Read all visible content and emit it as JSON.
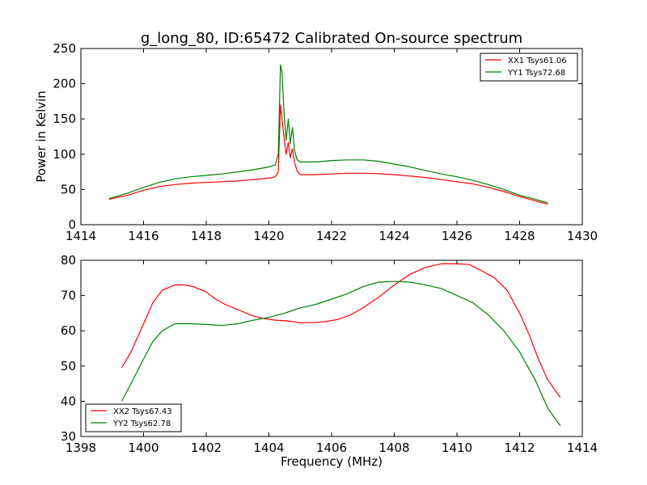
{
  "chart_data": [
    {
      "type": "line",
      "title": "g_long_80, ID:65472 Calibrated On-source spectrum",
      "xlabel": "",
      "ylabel": "Power in Kelvin",
      "xlim": [
        1414,
        1430
      ],
      "ylim": [
        0,
        250
      ],
      "xticks": [
        1414,
        1416,
        1418,
        1420,
        1422,
        1424,
        1426,
        1428,
        1430
      ],
      "yticks": [
        0,
        50,
        100,
        150,
        200,
        250
      ],
      "legend_position": "upper right",
      "grid": false,
      "series": [
        {
          "name": "XX1 Tsys61.06",
          "color": "#ff0000",
          "points": [
            [
              1414.9,
              36
            ],
            [
              1415.5,
              42
            ],
            [
              1416.0,
              49
            ],
            [
              1416.5,
              54
            ],
            [
              1417.0,
              57
            ],
            [
              1417.5,
              59
            ],
            [
              1418.0,
              60
            ],
            [
              1418.5,
              61
            ],
            [
              1419.0,
              62
            ],
            [
              1419.5,
              64
            ],
            [
              1420.0,
              66
            ],
            [
              1420.2,
              68
            ],
            [
              1420.3,
              75
            ],
            [
              1420.37,
              170
            ],
            [
              1420.42,
              150
            ],
            [
              1420.48,
              125
            ],
            [
              1420.55,
              100
            ],
            [
              1420.62,
              117
            ],
            [
              1420.68,
              95
            ],
            [
              1420.75,
              108
            ],
            [
              1420.82,
              88
            ],
            [
              1420.9,
              76
            ],
            [
              1421.0,
              71
            ],
            [
              1421.5,
              71
            ],
            [
              1422.0,
              72
            ],
            [
              1422.5,
              73
            ],
            [
              1423.0,
              73
            ],
            [
              1423.5,
              72.5
            ],
            [
              1424.0,
              71
            ],
            [
              1424.5,
              69
            ],
            [
              1425.0,
              67
            ],
            [
              1425.5,
              64
            ],
            [
              1426.0,
              61
            ],
            [
              1426.5,
              58
            ],
            [
              1427.0,
              53
            ],
            [
              1427.5,
              47
            ],
            [
              1428.0,
              40
            ],
            [
              1428.5,
              34
            ],
            [
              1428.9,
              29
            ]
          ]
        },
        {
          "name": "YY1 Tsys72.68",
          "color": "#008000",
          "points": [
            [
              1414.9,
              37
            ],
            [
              1415.5,
              45
            ],
            [
              1416.0,
              53
            ],
            [
              1416.5,
              60
            ],
            [
              1417.0,
              65
            ],
            [
              1417.5,
              68
            ],
            [
              1418.0,
              70
            ],
            [
              1418.5,
              72
            ],
            [
              1419.0,
              75
            ],
            [
              1419.5,
              78
            ],
            [
              1420.0,
              82
            ],
            [
              1420.2,
              85
            ],
            [
              1420.3,
              100
            ],
            [
              1420.37,
              227
            ],
            [
              1420.42,
              215
            ],
            [
              1420.48,
              160
            ],
            [
              1420.55,
              120
            ],
            [
              1420.62,
              150
            ],
            [
              1420.68,
              115
            ],
            [
              1420.75,
              138
            ],
            [
              1420.82,
              105
            ],
            [
              1420.9,
              92
            ],
            [
              1421.0,
              89
            ],
            [
              1421.5,
              89
            ],
            [
              1422.0,
              91
            ],
            [
              1422.5,
              92
            ],
            [
              1423.0,
              92
            ],
            [
              1423.5,
              90
            ],
            [
              1424.0,
              86
            ],
            [
              1424.5,
              82
            ],
            [
              1425.0,
              77
            ],
            [
              1425.5,
              72
            ],
            [
              1426.0,
              68
            ],
            [
              1426.5,
              63
            ],
            [
              1427.0,
              57
            ],
            [
              1427.5,
              50
            ],
            [
              1428.0,
              42
            ],
            [
              1428.5,
              36
            ],
            [
              1428.9,
              31
            ]
          ]
        }
      ]
    },
    {
      "type": "line",
      "title": "",
      "xlabel": "Frequency (MHz)",
      "ylabel": "",
      "xlim": [
        1398,
        1414
      ],
      "ylim": [
        30,
        80
      ],
      "xticks": [
        1398,
        1400,
        1402,
        1404,
        1406,
        1408,
        1410,
        1412,
        1414
      ],
      "yticks": [
        30,
        40,
        50,
        60,
        70,
        80
      ],
      "legend_position": "lower left",
      "grid": false,
      "series": [
        {
          "name": "XX2 Tsys67.43",
          "color": "#ff0000",
          "points": [
            [
              1399.3,
              49.5
            ],
            [
              1399.6,
              54
            ],
            [
              1400.0,
              62
            ],
            [
              1400.3,
              68
            ],
            [
              1400.6,
              71.5
            ],
            [
              1401.0,
              73
            ],
            [
              1401.3,
              73
            ],
            [
              1401.6,
              72.5
            ],
            [
              1402.0,
              71
            ],
            [
              1402.3,
              69
            ],
            [
              1402.6,
              67.5
            ],
            [
              1403.0,
              66
            ],
            [
              1403.4,
              64.5
            ],
            [
              1403.8,
              63.5
            ],
            [
              1404.2,
              63
            ],
            [
              1404.6,
              62.8
            ],
            [
              1405.0,
              62.3
            ],
            [
              1405.4,
              62.3
            ],
            [
              1405.8,
              62.6
            ],
            [
              1406.2,
              63.2
            ],
            [
              1406.6,
              64.5
            ],
            [
              1407.0,
              66.5
            ],
            [
              1407.5,
              69.5
            ],
            [
              1408.0,
              73
            ],
            [
              1408.5,
              76
            ],
            [
              1409.0,
              78
            ],
            [
              1409.5,
              79
            ],
            [
              1410.0,
              79
            ],
            [
              1410.4,
              78.8
            ],
            [
              1410.8,
              77
            ],
            [
              1411.2,
              75
            ],
            [
              1411.6,
              71.5
            ],
            [
              1412.0,
              65
            ],
            [
              1412.3,
              59
            ],
            [
              1412.6,
              52
            ],
            [
              1412.9,
              46
            ],
            [
              1413.3,
              41
            ]
          ]
        },
        {
          "name": "YY2 Tsys62.78",
          "color": "#008000",
          "points": [
            [
              1399.3,
              40
            ],
            [
              1399.6,
              45
            ],
            [
              1400.0,
              52
            ],
            [
              1400.3,
              57
            ],
            [
              1400.6,
              60
            ],
            [
              1401.0,
              62
            ],
            [
              1401.5,
              62
            ],
            [
              1402.0,
              61.8
            ],
            [
              1402.5,
              61.5
            ],
            [
              1403.0,
              62
            ],
            [
              1403.5,
              63
            ],
            [
              1404.0,
              63.8
            ],
            [
              1404.5,
              65
            ],
            [
              1405.0,
              66.5
            ],
            [
              1405.5,
              67.5
            ],
            [
              1406.0,
              69
            ],
            [
              1406.5,
              70.5
            ],
            [
              1407.0,
              72.5
            ],
            [
              1407.5,
              73.8
            ],
            [
              1408.0,
              74
            ],
            [
              1408.5,
              73.8
            ],
            [
              1409.0,
              73
            ],
            [
              1409.5,
              72
            ],
            [
              1410.0,
              70
            ],
            [
              1410.5,
              68
            ],
            [
              1411.0,
              64.5
            ],
            [
              1411.5,
              60
            ],
            [
              1412.0,
              54
            ],
            [
              1412.5,
              46
            ],
            [
              1412.9,
              38
            ],
            [
              1413.3,
              33
            ]
          ]
        }
      ]
    }
  ]
}
